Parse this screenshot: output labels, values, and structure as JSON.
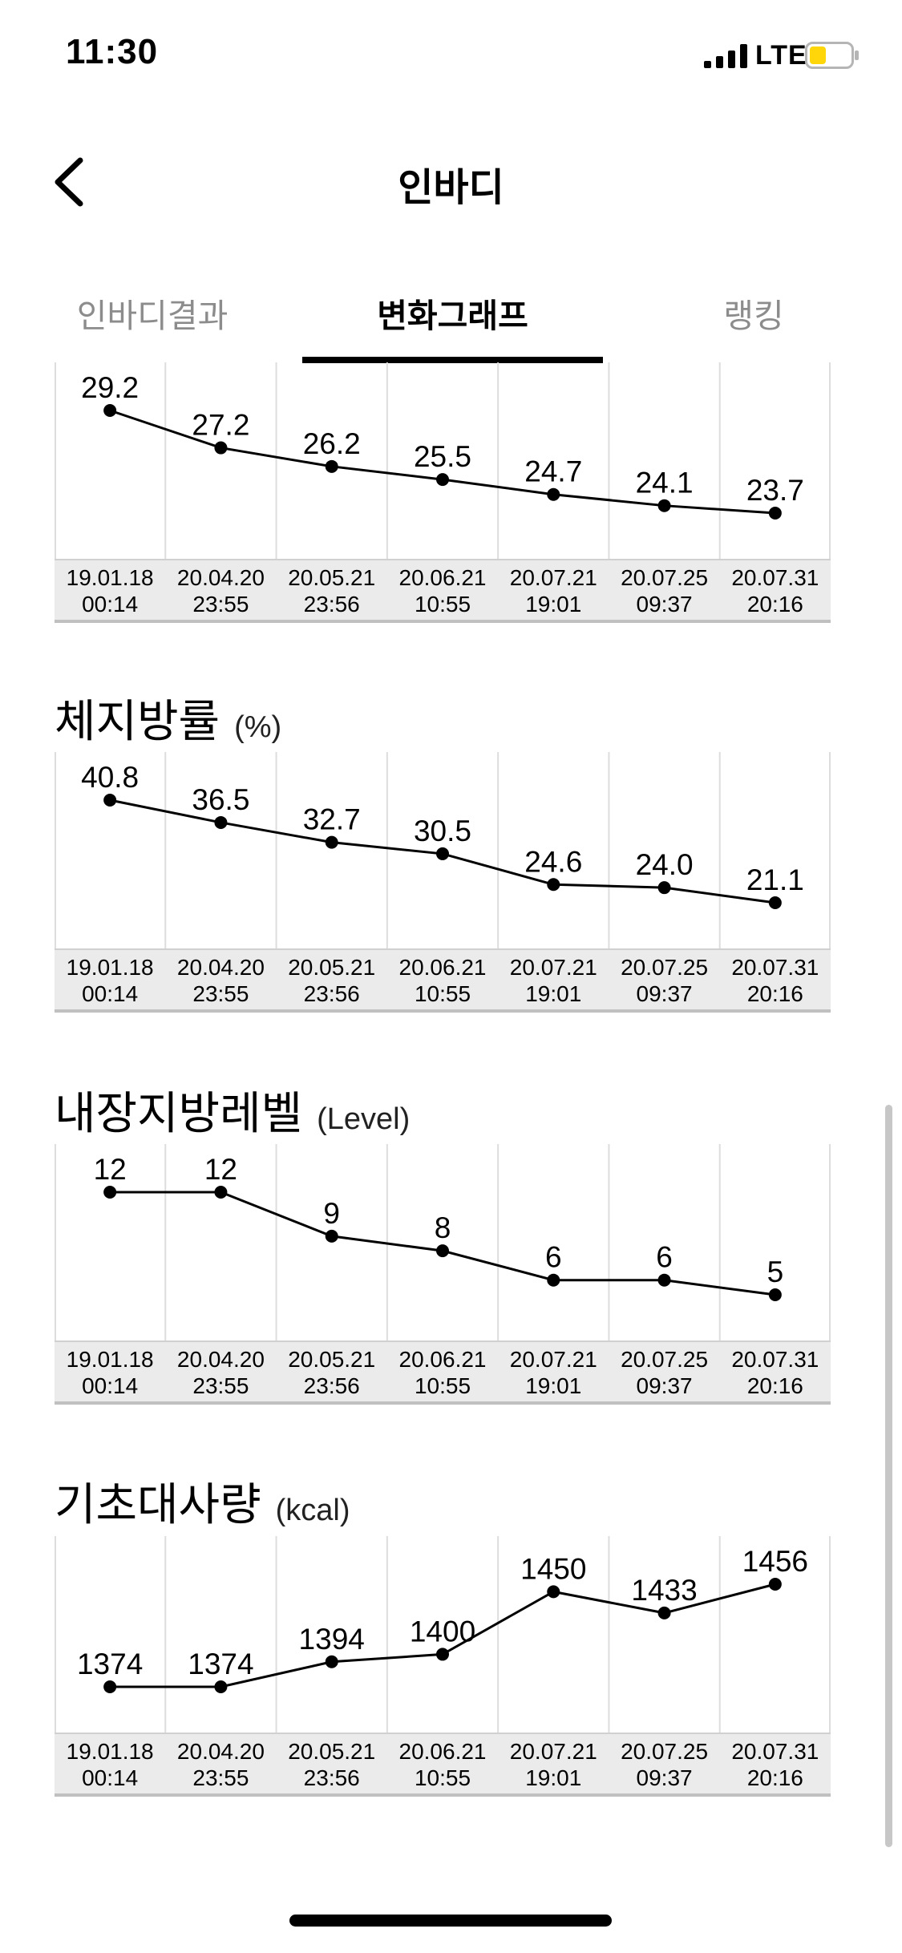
{
  "status_bar": {
    "time": "11:30",
    "network": "LTE",
    "battery_color": "#FFD60A"
  },
  "nav": {
    "title": "인바디",
    "back_icon": "chevron-left-icon"
  },
  "tabs": [
    {
      "label": "인바디결과",
      "active": false
    },
    {
      "label": "변화그래프",
      "active": true
    },
    {
      "label": "랭킹",
      "active": false
    }
  ],
  "dates": [
    [
      "19.01.18",
      "00:14"
    ],
    [
      "20.04.20",
      "23:55"
    ],
    [
      "20.05.21",
      "23:56"
    ],
    [
      "20.06.21",
      "10:55"
    ],
    [
      "20.07.21",
      "19:01"
    ],
    [
      "20.07.25",
      "09:37"
    ],
    [
      "20.07.31",
      "20:16"
    ]
  ],
  "chart_data": [
    {
      "type": "line",
      "title": "",
      "unit": "",
      "values": [
        29.2,
        27.2,
        26.2,
        25.5,
        24.7,
        24.1,
        23.7
      ],
      "labels": [
        "29.2",
        "27.2",
        "26.2",
        "25.5",
        "24.7",
        "24.1",
        "23.7"
      ],
      "partially_visible": true
    },
    {
      "type": "line",
      "title": "체지방률",
      "unit": "(%)",
      "values": [
        40.8,
        36.5,
        32.7,
        30.5,
        24.6,
        24.0,
        21.1
      ],
      "labels": [
        "40.8",
        "36.5",
        "32.7",
        "30.5",
        "24.6",
        "24.0",
        "21.1"
      ]
    },
    {
      "type": "line",
      "title": "내장지방레벨",
      "unit": "(Level)",
      "values": [
        12,
        12,
        9,
        8,
        6,
        6,
        5
      ],
      "labels": [
        "12",
        "12",
        "9",
        "8",
        "6",
        "6",
        "5"
      ]
    },
    {
      "type": "line",
      "title": "기초대사량",
      "unit": "(kcal)",
      "values": [
        1374,
        1374,
        1394,
        1400,
        1450,
        1433,
        1456
      ],
      "labels": [
        "1374",
        "1374",
        "1394",
        "1400",
        "1450",
        "1433",
        "1456"
      ]
    }
  ]
}
